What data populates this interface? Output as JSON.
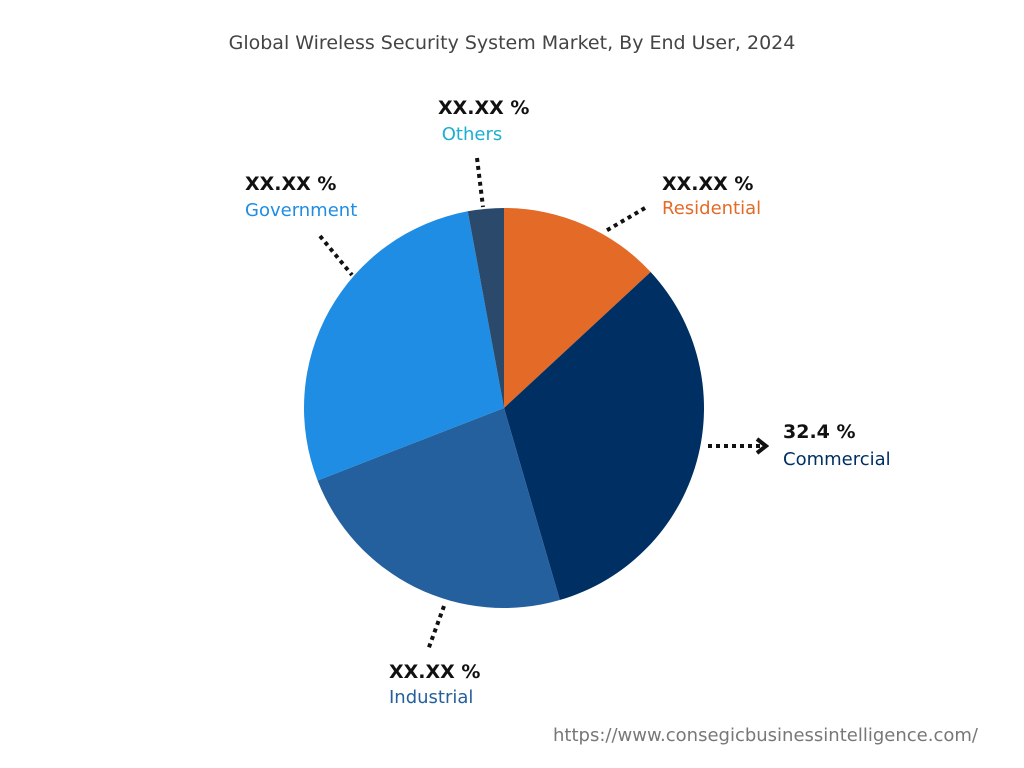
{
  "chart_data": {
    "type": "pie",
    "title": "Global Wireless Security System Market, By End User, 2024",
    "start_angle": "top, clockwise",
    "slices": [
      {
        "label": "Residential",
        "value": 13.1,
        "display": "XX.XX %",
        "color": "#E36A27",
        "label_color": "#E36A27"
      },
      {
        "label": "Commercial",
        "value": 32.4,
        "display": "32.4 %",
        "color": "#003063",
        "label_color": "#003063"
      },
      {
        "label": "Industrial",
        "value": 23.6,
        "display": "XX.XX %",
        "color": "#245F9E",
        "label_color": "#245F9E"
      },
      {
        "label": "Government",
        "value": 28.0,
        "display": "XX.XX %",
        "color": "#1E8DE3",
        "label_color": "#1E8DE3"
      },
      {
        "label": "Others",
        "value": 2.9,
        "display": "XX.XX %",
        "color": "#2B4A6B",
        "label_color": "#1BB0CF"
      }
    ]
  },
  "source": "https://www.consegicbusinessintelligence.com/"
}
